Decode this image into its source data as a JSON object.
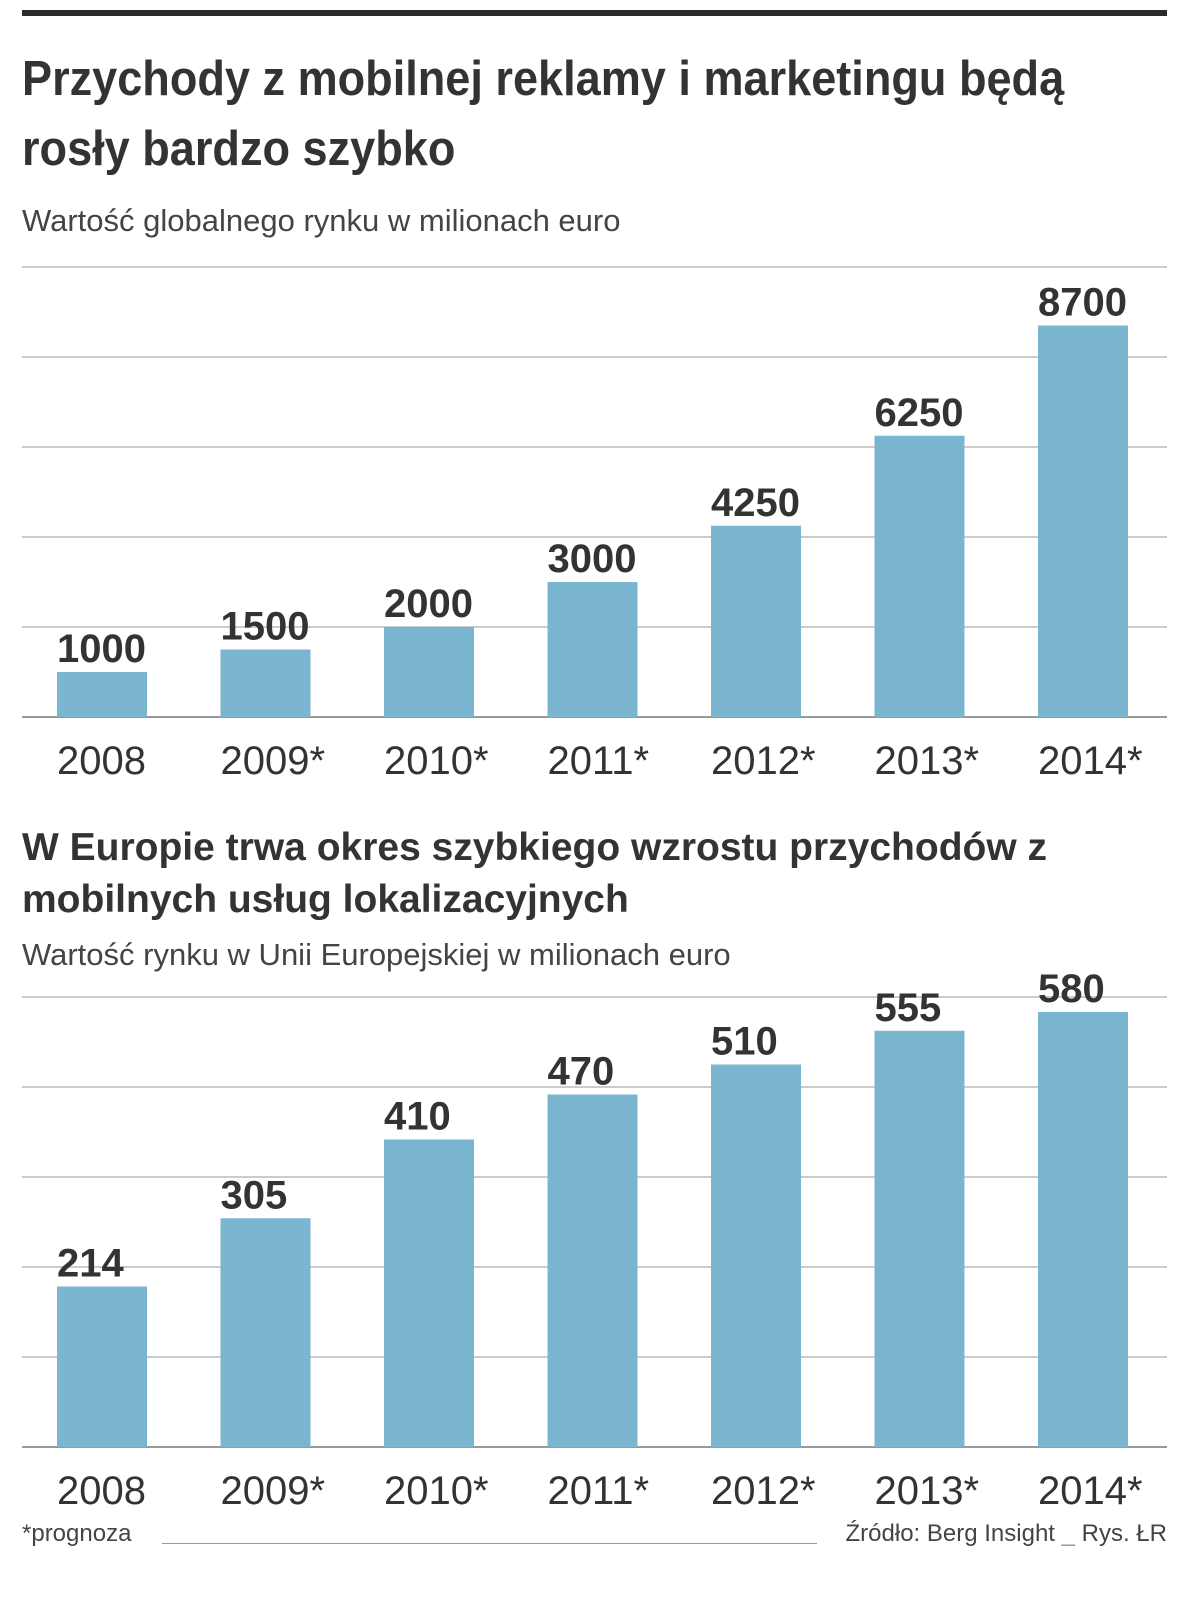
{
  "charts": [
    {
      "title": "Przychody z mobilnej reklamy i marketingu będą rosły bardzo szybko",
      "subtitle": "Wartość globalnego rynku w milionach euro"
    },
    {
      "title": "W Europie trwa okres szybkiego wzrostu przychodów z mobilnych usług lokalizacyjnych",
      "subtitle": "Wartość rynku w Unii Europejskiej w milionach euro"
    }
  ],
  "footer": {
    "footnote": "*prognoza",
    "source": "Źródło: Berg Insight",
    "credit": "Rys. ŁR"
  },
  "chart_data": [
    {
      "type": "bar",
      "title": "Przychody z mobilnej reklamy i marketingu będą rosły bardzo szybko",
      "subtitle": "Wartość globalnego rynku w milionach euro",
      "categories": [
        "2008",
        "2009*",
        "2010*",
        "2011*",
        "2012*",
        "2013*",
        "2014*"
      ],
      "values": [
        1000,
        1500,
        2000,
        3000,
        4250,
        6250,
        8700
      ],
      "ylim": [
        0,
        10000
      ],
      "grid": true,
      "bar_color": "#7ab6d0"
    },
    {
      "type": "bar",
      "title": "W Europie trwa okres szybkiego wzrostu przychodów z mobilnych usług lokalizacyjnych",
      "subtitle": "Wartość rynku w Unii Europejskiej w milionach euro",
      "categories": [
        "2008",
        "2009*",
        "2010*",
        "2011*",
        "2012*",
        "2013*",
        "2014*"
      ],
      "values": [
        214,
        305,
        410,
        470,
        510,
        555,
        580
      ],
      "ylim": [
        0,
        600
      ],
      "grid": true,
      "bar_color": "#7ab6d0"
    }
  ]
}
